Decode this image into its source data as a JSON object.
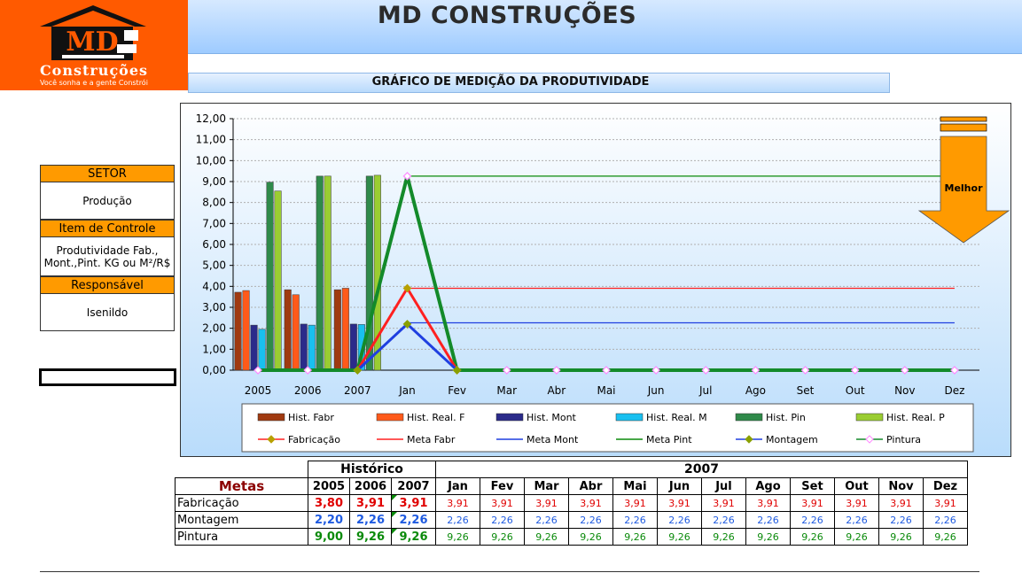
{
  "app": {
    "title": "MD CONSTRUÇÕES"
  },
  "logo": {
    "letters": "MD",
    "name": "Construções",
    "slogan": "Você sonha e a gente Constrói"
  },
  "subtitle": "GRÁFICO DE MEDIÇÃO DA PRODUTIVIDADE",
  "side_panel": {
    "setor_label": "SETOR",
    "setor_value": "Produção",
    "item_label": "Item de Controle",
    "item_value_1": "Produtividade Fab.,",
    "item_value_2": "Mont.,Pint. KG ou M²/R$",
    "resp_label": "Responsável",
    "resp_value": "Isenildo"
  },
  "indicator": {
    "label": "Melhor"
  },
  "colors": {
    "logo_bg": "#ff5a00",
    "side_head": "#ff9a00",
    "arrow": "#ff9a00",
    "fabr": "#e00000",
    "mont": "#1f5be0",
    "pint": "#0a8a0a"
  },
  "chart_data": {
    "type": "bar",
    "categories": [
      "2005",
      "2006",
      "2007",
      "Jan",
      "Fev",
      "Mar",
      "Abr",
      "Mai",
      "Jun",
      "Jul",
      "Ago",
      "Set",
      "Out",
      "Nov",
      "Dez"
    ],
    "ylim": [
      0,
      12
    ],
    "yticks": [
      "0,00",
      "1,00",
      "2,00",
      "3,00",
      "4,00",
      "5,00",
      "6,00",
      "7,00",
      "8,00",
      "9,00",
      "10,00",
      "11,00",
      "12,00"
    ],
    "grid": true,
    "legend_position": "bottom",
    "bar_series": [
      {
        "name": "Hist. Fabr",
        "color": "#a03a10",
        "values": [
          3.72,
          3.84,
          3.84,
          null,
          null,
          null,
          null,
          null,
          null,
          null,
          null,
          null,
          null,
          null,
          null
        ]
      },
      {
        "name": "Hist. Real. F",
        "color": "#ff5a1a",
        "values": [
          3.8,
          3.6,
          3.91,
          null,
          null,
          null,
          null,
          null,
          null,
          null,
          null,
          null,
          null,
          null,
          null
        ]
      },
      {
        "name": "Hist. Mont",
        "color": "#2b2b8a",
        "values": [
          2.15,
          2.2,
          2.2,
          null,
          null,
          null,
          null,
          null,
          null,
          null,
          null,
          null,
          null,
          null,
          null
        ]
      },
      {
        "name": "Hist. Real. M",
        "color": "#19c0f0",
        "values": [
          1.95,
          2.15,
          2.18,
          null,
          null,
          null,
          null,
          null,
          null,
          null,
          null,
          null,
          null,
          null,
          null
        ]
      },
      {
        "name": "Hist. Pin",
        "color": "#2f8a4a",
        "values": [
          8.97,
          9.26,
          9.26,
          null,
          null,
          null,
          null,
          null,
          null,
          null,
          null,
          null,
          null,
          null,
          null
        ]
      },
      {
        "name": "Hist. Real. P",
        "color": "#9acd32",
        "values": [
          8.55,
          9.26,
          9.3,
          null,
          null,
          null,
          null,
          null,
          null,
          null,
          null,
          null,
          null,
          null,
          null
        ]
      }
    ],
    "line_series": [
      {
        "name": "Fabricação",
        "color": "#ff2020",
        "marker": "diamond",
        "marker_color": "#b8a000",
        "width": 3,
        "values": [
          null,
          null,
          0,
          3.91,
          0,
          null,
          null,
          null,
          null,
          null,
          null,
          null,
          null,
          null,
          null
        ]
      },
      {
        "name": "Montagem",
        "color": "#1f3fe0",
        "marker": "diamond",
        "marker_color": "#8aa000",
        "width": 3,
        "values": [
          null,
          null,
          0,
          2.2,
          0,
          null,
          null,
          null,
          null,
          null,
          null,
          null,
          null,
          null,
          null
        ]
      },
      {
        "name": "Pintura",
        "color": "#138a2a",
        "marker": "diamond",
        "marker_color": "#ff88ff",
        "width": 4,
        "values": [
          0,
          0,
          0,
          9.26,
          0,
          0,
          0,
          0,
          0,
          0,
          0,
          0,
          0,
          0,
          0
        ]
      }
    ],
    "meta_lines": [
      {
        "name": "Meta Fabr",
        "color": "#ff2020",
        "value": 3.91,
        "from": "Jan",
        "to": "Dez"
      },
      {
        "name": "Meta Mont",
        "color": "#1f3fe0",
        "value": 2.26,
        "from": "Jan",
        "to": "Dez"
      },
      {
        "name": "Meta Pint",
        "color": "#0a8a0a",
        "value": 9.26,
        "from": "Jan",
        "to": "Dez"
      }
    ],
    "legend_order": [
      "Hist. Fabr",
      "Hist. Real. F",
      "Hist. Mont",
      "Hist. Real. M",
      "Hist. Pin",
      "Hist. Real. P",
      "Fabricação",
      "Meta Fabr",
      "Meta Mont",
      "Meta Pint",
      "Montagem",
      "Pintura"
    ]
  },
  "table": {
    "historico_label": "Histórico",
    "year_label": "2007",
    "metas_label": "Metas",
    "columns": [
      "2005",
      "2006",
      "2007",
      "Jan",
      "Fev",
      "Mar",
      "Abr",
      "Mai",
      "Jun",
      "Jul",
      "Ago",
      "Set",
      "Out",
      "Nov",
      "Dez"
    ],
    "rows": [
      {
        "label": "Fabricação",
        "color": "red",
        "values": [
          "3,80",
          "3,91",
          "3,91",
          "3,91",
          "3,91",
          "3,91",
          "3,91",
          "3,91",
          "3,91",
          "3,91",
          "3,91",
          "3,91",
          "3,91",
          "3,91",
          "3,91"
        ]
      },
      {
        "label": "Montagem",
        "color": "blue",
        "values": [
          "2,20",
          "2,26",
          "2,26",
          "2,26",
          "2,26",
          "2,26",
          "2,26",
          "2,26",
          "2,26",
          "2,26",
          "2,26",
          "2,26",
          "2,26",
          "2,26",
          "2,26"
        ]
      },
      {
        "label": "Pintura",
        "color": "green",
        "values": [
          "9,00",
          "9,26",
          "9,26",
          "9,26",
          "9,26",
          "9,26",
          "9,26",
          "9,26",
          "9,26",
          "9,26",
          "9,26",
          "9,26",
          "9,26",
          "9,26",
          "9,26"
        ]
      }
    ]
  }
}
